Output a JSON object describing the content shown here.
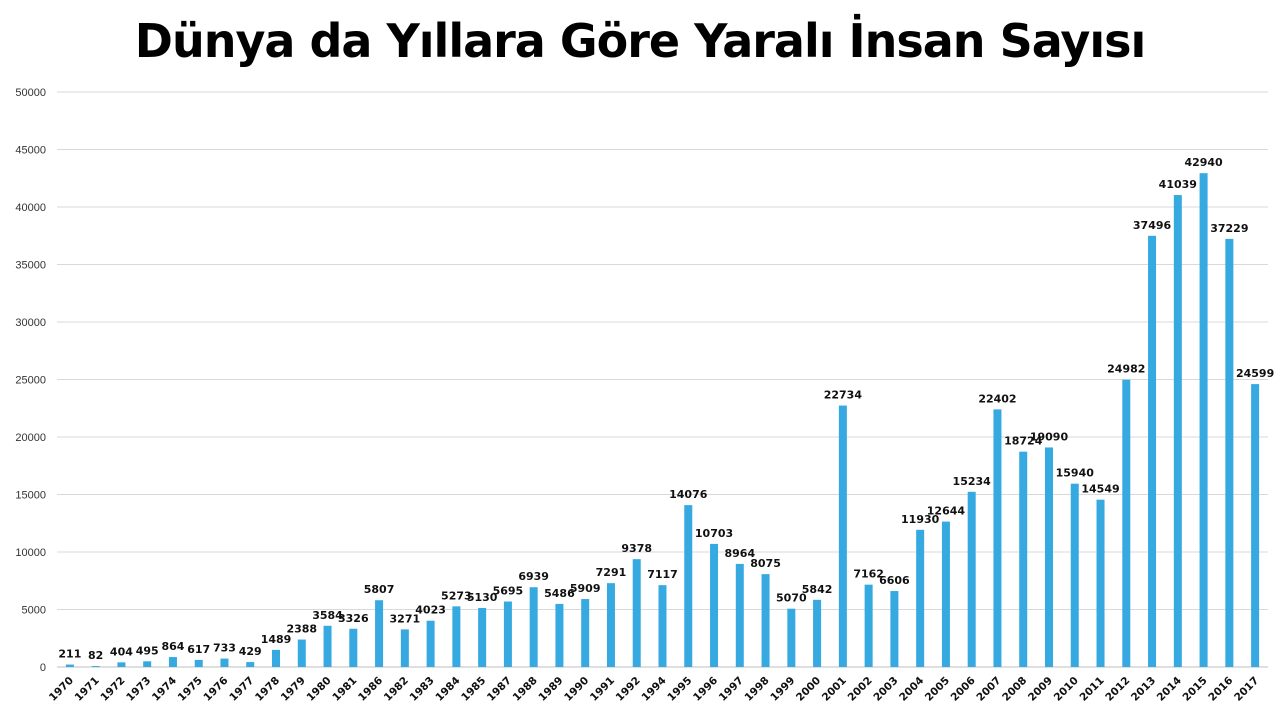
{
  "chart_data": {
    "type": "bar",
    "title": "Dünya da Yıllara Göre Yaralı İnsan Sayısı",
    "xlabel": "",
    "ylabel": "",
    "ylim": [
      0,
      50000
    ],
    "yticks": [
      0,
      5000,
      10000,
      15000,
      20000,
      25000,
      30000,
      35000,
      40000,
      45000,
      50000
    ],
    "grid": true,
    "bar_color": "#36A9E1",
    "categories": [
      "1970",
      "1971",
      "1972",
      "1973",
      "1974",
      "1975",
      "1976",
      "1977",
      "1978",
      "1979",
      "1980",
      "1981",
      "1986",
      "1982",
      "1983",
      "1984",
      "1985",
      "1987",
      "1988",
      "1989",
      "1990",
      "1991",
      "1992",
      "1994",
      "1995",
      "1996",
      "1997",
      "1998",
      "1999",
      "2000",
      "2001",
      "2002",
      "2003",
      "2004",
      "2005",
      "2006",
      "2007",
      "2008",
      "2009",
      "2010",
      "2011",
      "2012",
      "2013",
      "2014",
      "2015",
      "2016",
      "2017"
    ],
    "values": [
      211,
      82,
      404,
      495,
      864,
      617,
      733,
      429,
      1489,
      2388,
      3584,
      3326,
      5807,
      3271,
      4023,
      5273,
      5130,
      5695,
      6939,
      5486,
      5909,
      7291,
      9378,
      7117,
      14076,
      10703,
      8964,
      8075,
      5070,
      5842,
      22734,
      7162,
      6606,
      11930,
      12644,
      15234,
      22402,
      18724,
      19090,
      15940,
      14549,
      24982,
      37496,
      41039,
      42940,
      37229,
      24599
    ]
  }
}
